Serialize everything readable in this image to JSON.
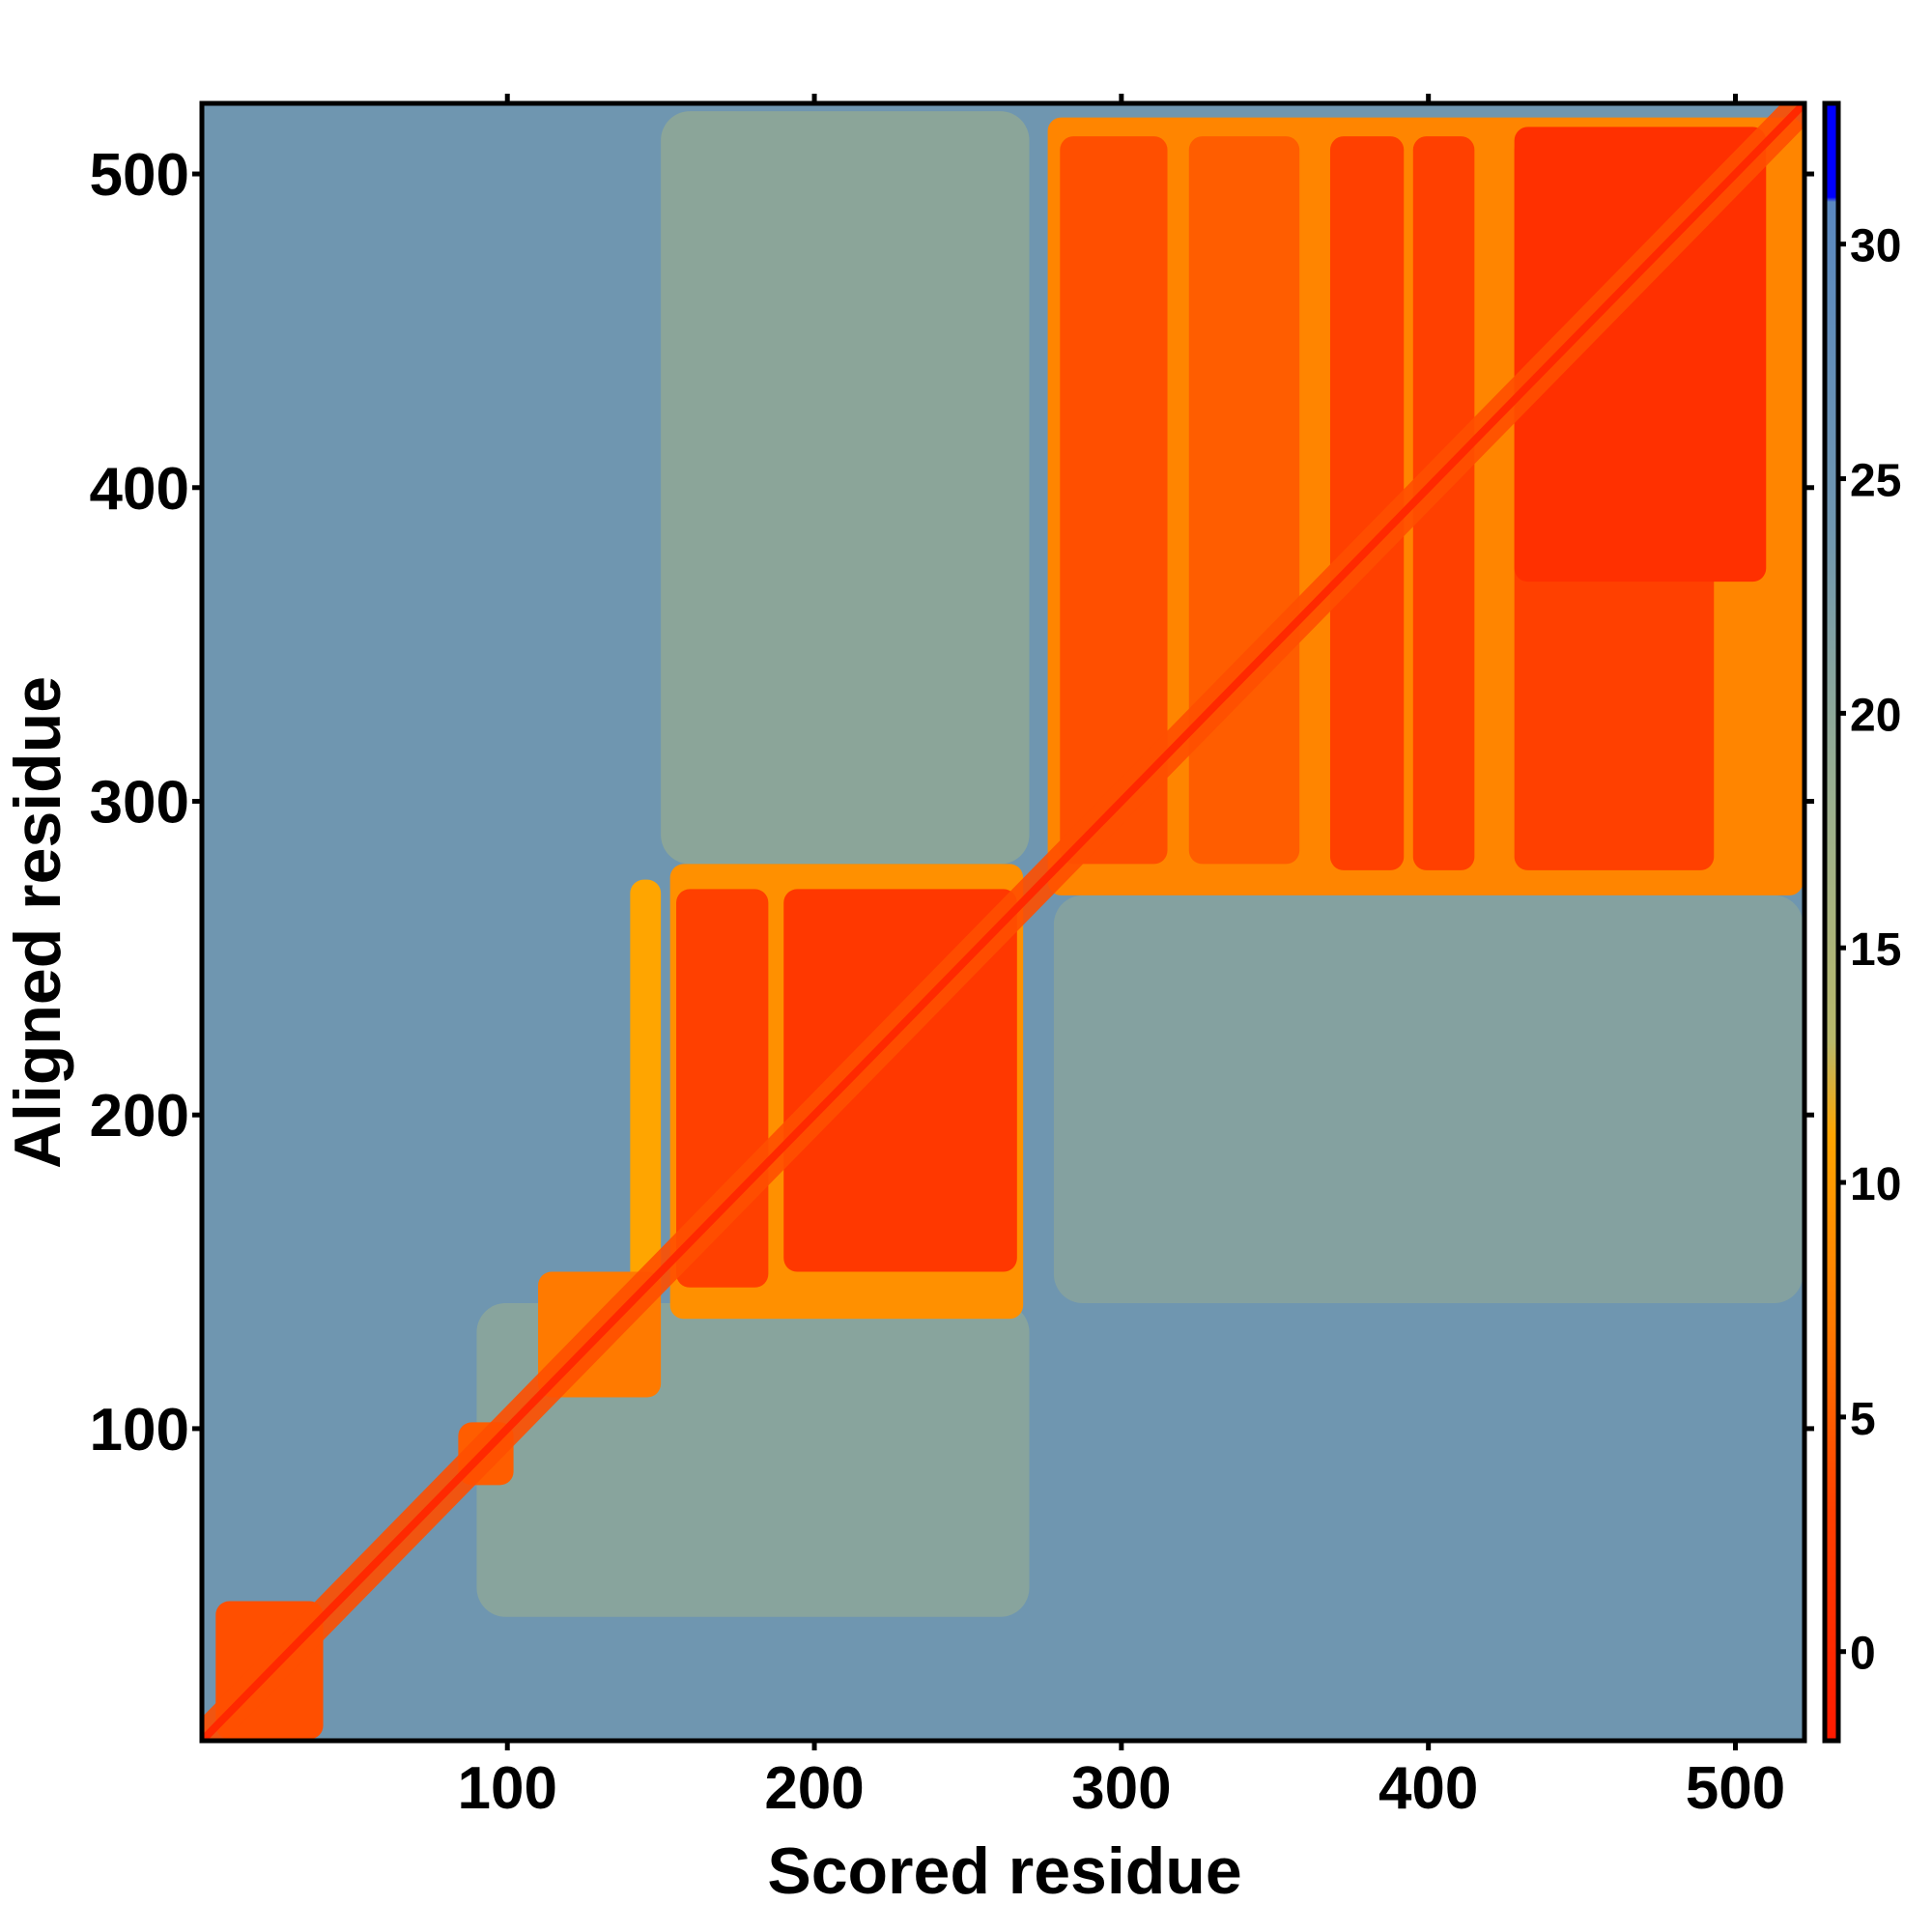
{
  "chart_data": {
    "type": "heatmap",
    "title": "",
    "xlabel": "Scored residue",
    "ylabel": "Aligned residue",
    "xlim": [
      0.5,
      522.5
    ],
    "ylim": [
      0.5,
      522.5
    ],
    "xticks": [
      100,
      200,
      300,
      400,
      500
    ],
    "yticks": [
      100,
      200,
      300,
      400,
      500
    ],
    "colorbar": {
      "range": [
        -1.9,
        33
      ],
      "ticks": [
        0,
        5,
        10,
        15,
        20,
        25,
        30
      ],
      "stops": [
        {
          "v": -1.9,
          "color": "#ff1a00"
        },
        {
          "v": 3,
          "color": "#ff4000"
        },
        {
          "v": 7,
          "color": "#ff7a00"
        },
        {
          "v": 11,
          "color": "#ffa500"
        },
        {
          "v": 13,
          "color": "#b8b86a"
        },
        {
          "v": 18,
          "color": "#9cb08e"
        },
        {
          "v": 24,
          "color": "#6f96b0"
        },
        {
          "v": 30.9,
          "color": "#5a88c0"
        },
        {
          "v": 31,
          "color": "#0000ff"
        },
        {
          "v": 33,
          "color": "#0000ff"
        }
      ]
    },
    "background_value": 24,
    "diagonal_value": 0,
    "regions": [
      {
        "name": "n-term-block",
        "x": [
          5,
          40
        ],
        "y": [
          1,
          45
        ],
        "value": 4
      },
      {
        "name": "block-85-100",
        "x": [
          84,
          102
        ],
        "y": [
          82,
          102
        ],
        "value": 5
      },
      {
        "name": "link-110-150",
        "x": [
          110,
          150
        ],
        "y": [
          110,
          150
        ],
        "value": 7
      },
      {
        "name": "cross-140-halo",
        "x": [
          140,
          150
        ],
        "y": [
          140,
          275
        ],
        "value": 11
      },
      {
        "name": "domain2-halo",
        "x": [
          153,
          268
        ],
        "y": [
          135,
          280
        ],
        "value": 9
      },
      {
        "name": "domain2-colA",
        "x": [
          155,
          185
        ],
        "y": [
          145,
          272
        ],
        "value": 3
      },
      {
        "name": "domain2-colB",
        "x": [
          190,
          266
        ],
        "y": [
          150,
          272
        ],
        "value": 2
      },
      {
        "name": "domain3-halo",
        "x": [
          276,
          522
        ],
        "y": [
          270,
          518
        ],
        "value": 8
      },
      {
        "name": "domain3-colA",
        "x": [
          280,
          315
        ],
        "y": [
          280,
          512
        ],
        "value": 4
      },
      {
        "name": "domain3-colB",
        "x": [
          322,
          358
        ],
        "y": [
          280,
          512
        ],
        "value": 5
      },
      {
        "name": "domain3-colC",
        "x": [
          368,
          392
        ],
        "y": [
          278,
          512
        ],
        "value": 3
      },
      {
        "name": "domain3-colD",
        "x": [
          395,
          415
        ],
        "y": [
          278,
          512
        ],
        "value": 3
      },
      {
        "name": "domain3-colE",
        "x": [
          428,
          493
        ],
        "y": [
          278,
          512
        ],
        "value": 3
      },
      {
        "name": "domain3-top",
        "x": [
          428,
          510
        ],
        "y": [
          370,
          515
        ],
        "value": 1
      },
      {
        "name": "green-band-1",
        "x": [
          150,
          270
        ],
        "y": [
          280,
          520
        ],
        "value": 17
      },
      {
        "name": "green-band-2",
        "x": [
          278,
          522
        ],
        "y": [
          140,
          270
        ],
        "value": 19
      },
      {
        "name": "green-band-3",
        "x": [
          90,
          270
        ],
        "y": [
          40,
          140
        ],
        "value": 18
      }
    ]
  }
}
